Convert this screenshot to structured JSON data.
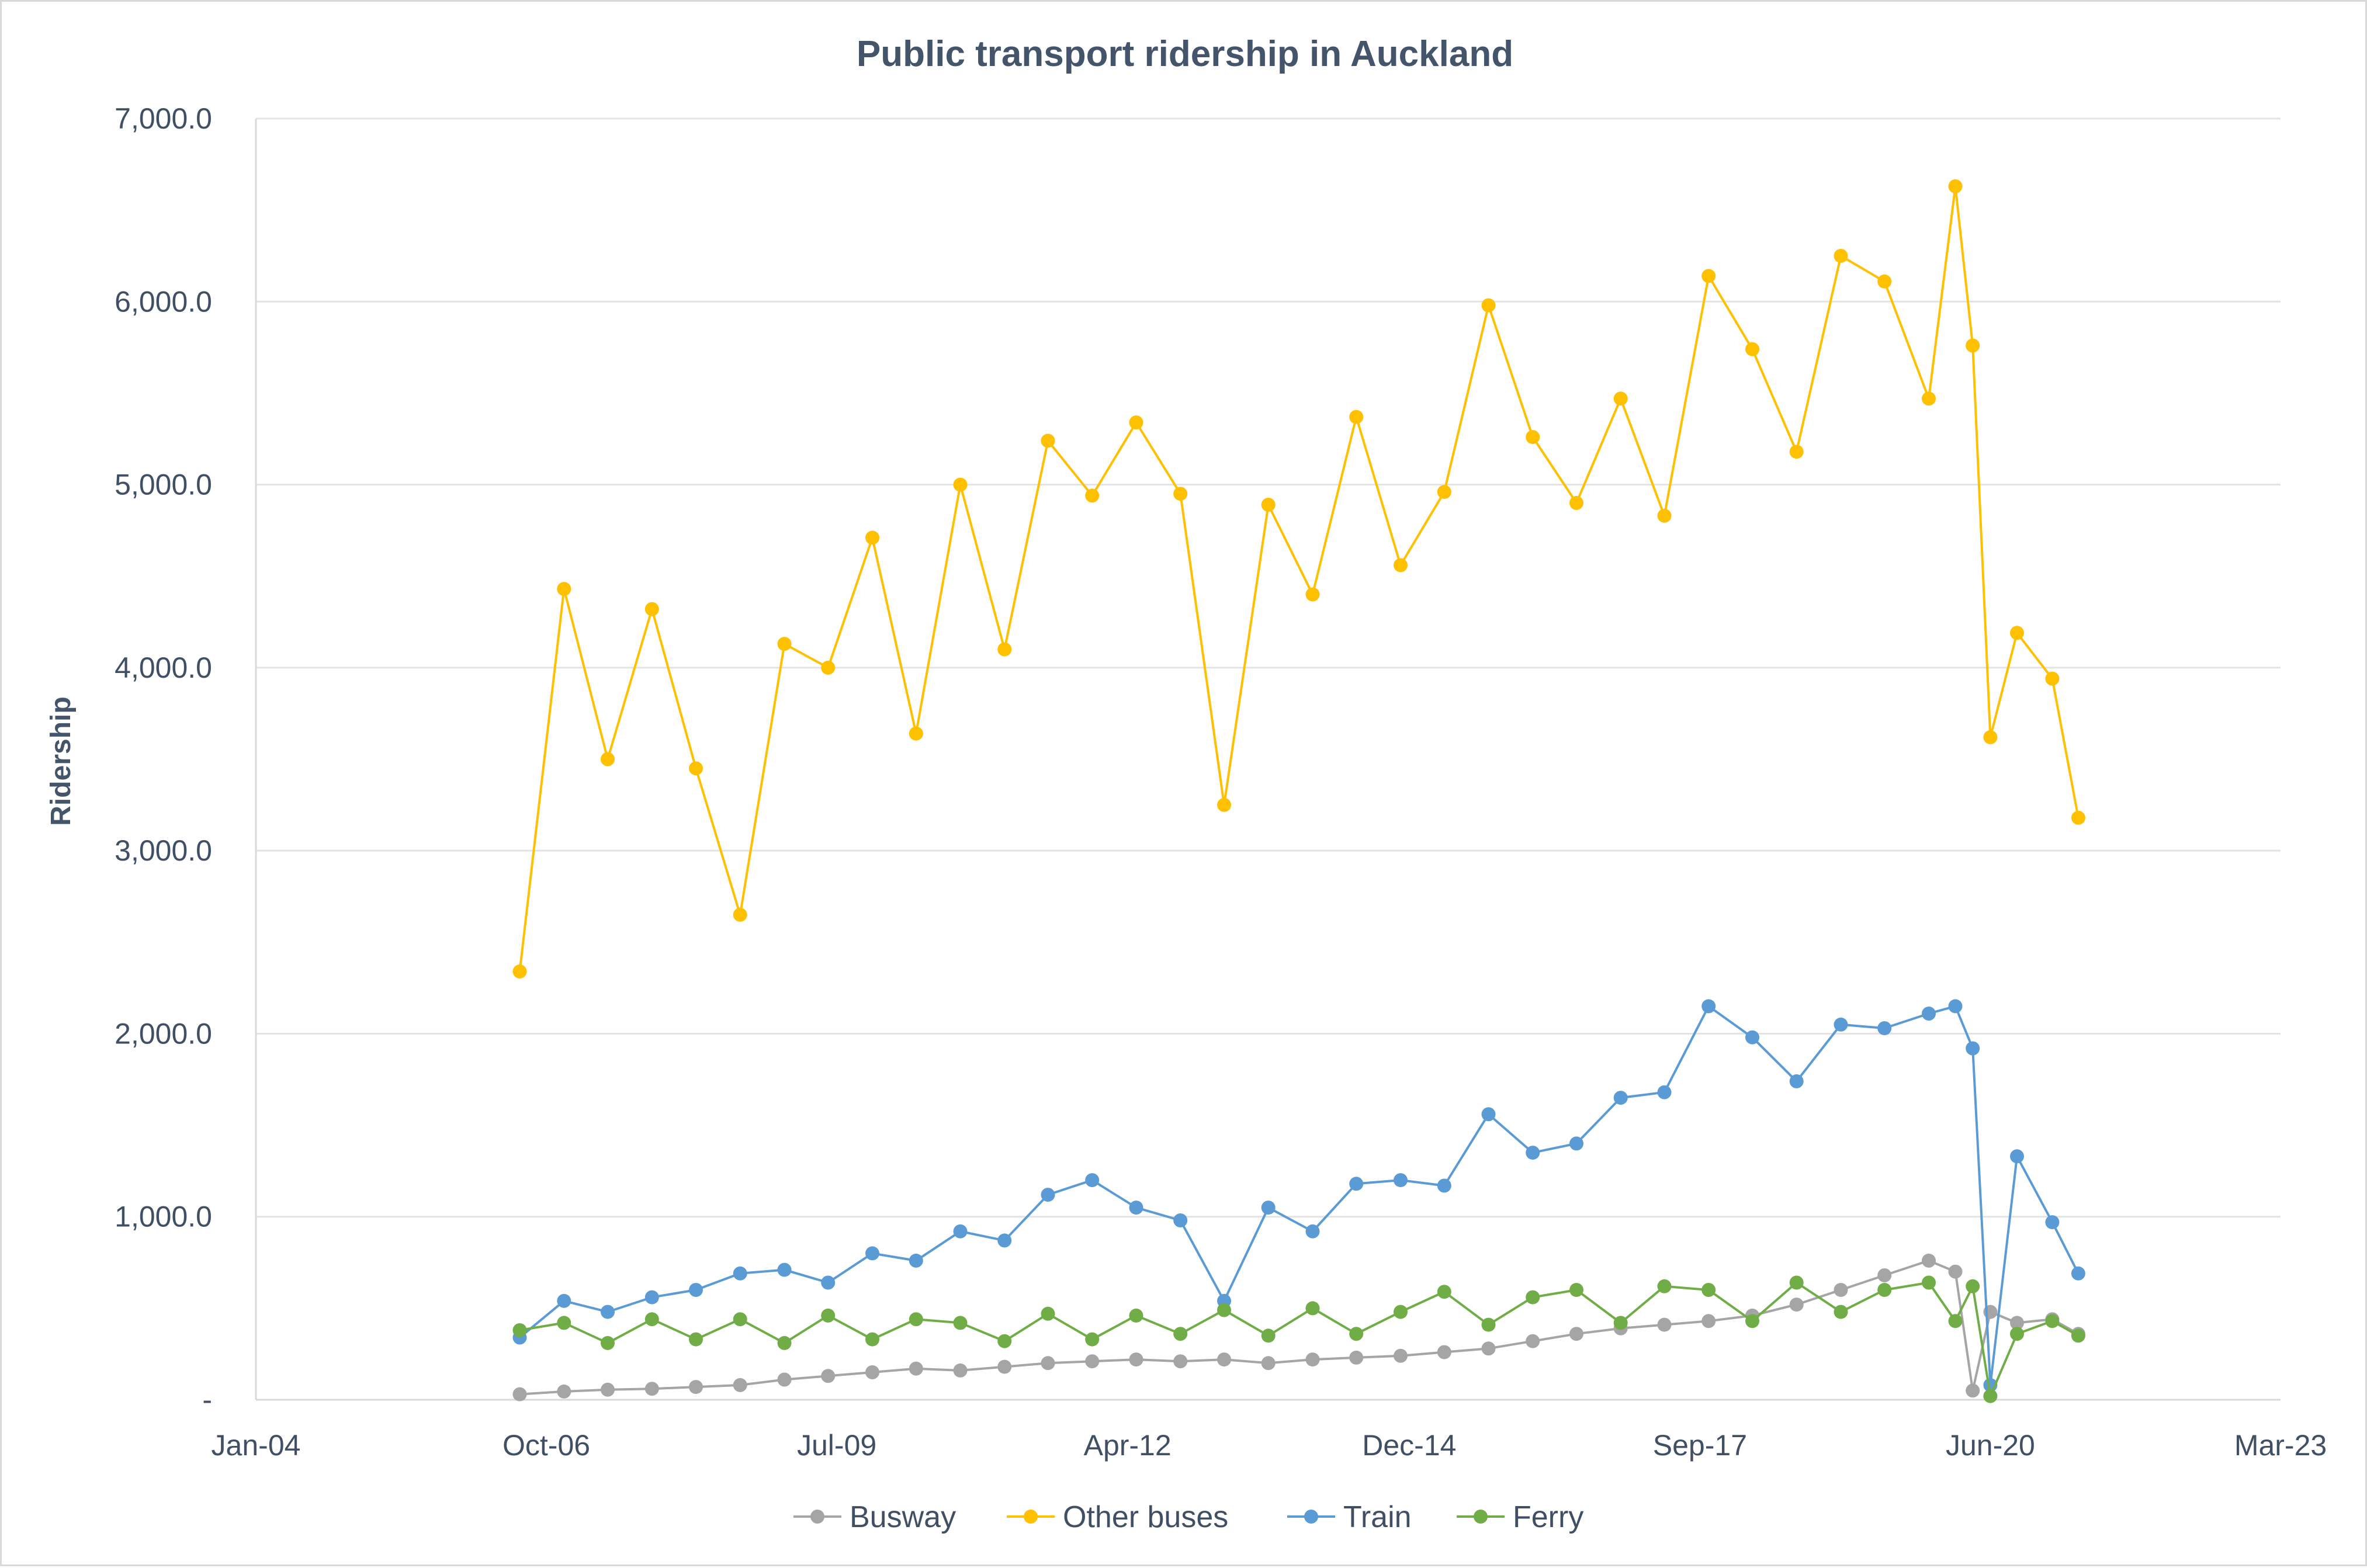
{
  "chart_data": {
    "type": "line",
    "title": "Public transport ridership in Auckland",
    "xlabel": "",
    "ylabel": "Ridership",
    "x_axis": {
      "type": "date",
      "range": [
        "2004-01-01",
        "2023-03-01"
      ],
      "tick_labels": [
        "Jan-04",
        "Oct-06",
        "Jul-09",
        "Apr-12",
        "Dec-14",
        "Sep-17",
        "Jun-20",
        "Mar-23"
      ],
      "tick_dates": [
        "2004-01-01",
        "2006-10-01",
        "2009-07-01",
        "2012-04-01",
        "2014-12-01",
        "2017-09-01",
        "2020-06-01",
        "2023-03-01"
      ]
    },
    "y_axis": {
      "range": [
        0,
        7000
      ],
      "tick_values": [
        0,
        1000,
        2000,
        3000,
        4000,
        5000,
        6000,
        7000
      ],
      "tick_labels": [
        "-",
        "1,000.0",
        "2,000.0",
        "3,000.0",
        "4,000.0",
        "5,000.0",
        "6,000.0",
        "7,000.0"
      ]
    },
    "grid": "horizontal",
    "legend_position": "bottom",
    "x": [
      "2006-07-01",
      "2006-12-01",
      "2007-05-01",
      "2007-10-01",
      "2008-03-01",
      "2008-08-01",
      "2009-01-01",
      "2009-06-01",
      "2009-11-01",
      "2010-04-01",
      "2010-09-01",
      "2011-02-01",
      "2011-07-01",
      "2011-12-01",
      "2012-05-01",
      "2012-10-01",
      "2013-03-01",
      "2013-08-01",
      "2014-01-01",
      "2014-06-01",
      "2014-11-01",
      "2015-04-01",
      "2015-09-01",
      "2016-02-01",
      "2016-07-01",
      "2016-12-01",
      "2017-05-01",
      "2017-10-01",
      "2018-03-01",
      "2018-08-01",
      "2019-01-01",
      "2019-06-01",
      "2019-11-01",
      "2020-02-01",
      "2020-04-01",
      "2020-06-01",
      "2020-09-01",
      "2021-01-01",
      "2021-04-01"
    ],
    "series": [
      {
        "name": "Busway",
        "color": "#a5a5a5",
        "values": [
          30,
          45,
          55,
          60,
          70,
          80,
          110,
          130,
          150,
          170,
          160,
          180,
          200,
          210,
          220,
          210,
          220,
          200,
          220,
          230,
          240,
          260,
          280,
          320,
          360,
          390,
          410,
          430,
          460,
          520,
          600,
          680,
          760,
          700,
          50,
          480,
          420,
          440,
          360
        ]
      },
      {
        "name": "Other buses",
        "color": "#ffc000",
        "values": [
          2340,
          4430,
          3500,
          4320,
          3450,
          2650,
          4130,
          4000,
          4710,
          3640,
          5000,
          4100,
          5240,
          4940,
          5340,
          4950,
          3250,
          4890,
          4400,
          5370,
          4560,
          4960,
          5980,
          5260,
          4900,
          5470,
          4830,
          6140,
          5740,
          5180,
          6250,
          6110,
          5470,
          6630,
          5760,
          3620,
          4190,
          3940,
          3180
        ]
      },
      {
        "name": "Train",
        "color": "#5b9bd5",
        "values": [
          340,
          540,
          480,
          560,
          600,
          690,
          710,
          640,
          800,
          760,
          920,
          870,
          1120,
          1200,
          1050,
          980,
          540,
          1050,
          920,
          1180,
          1200,
          1170,
          1560,
          1350,
          1400,
          1650,
          1680,
          2150,
          1980,
          1740,
          2050,
          2030,
          2110,
          2150,
          1920,
          80,
          1330,
          970,
          690
        ]
      },
      {
        "name": "Ferry",
        "color": "#70ad47",
        "values": [
          380,
          420,
          310,
          440,
          330,
          440,
          310,
          460,
          330,
          440,
          420,
          320,
          470,
          330,
          460,
          360,
          490,
          350,
          500,
          360,
          480,
          590,
          410,
          560,
          600,
          420,
          620,
          600,
          430,
          640,
          480,
          600,
          640,
          430,
          620,
          20,
          360,
          430,
          350
        ]
      }
    ]
  },
  "legend": [
    {
      "label": "Busway",
      "color": "#a5a5a5"
    },
    {
      "label": "Other buses",
      "color": "#ffc000"
    },
    {
      "label": "Train",
      "color": "#5b9bd5"
    },
    {
      "label": "Ferry",
      "color": "#70ad47"
    }
  ]
}
